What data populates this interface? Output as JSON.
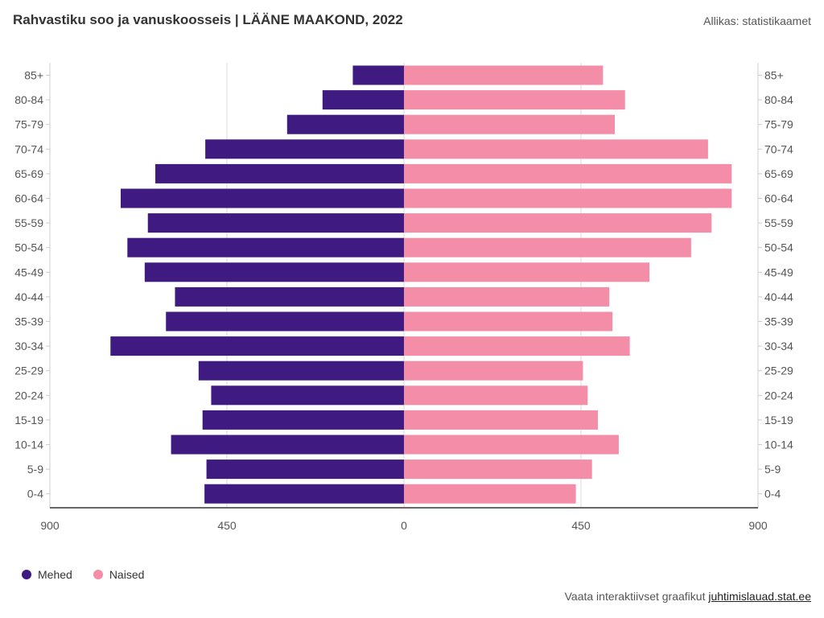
{
  "header": {
    "title": "Rahvastiku soo ja vanuskoosseis | LÄÄNE MAAKOND, 2022",
    "source": "Allikas: statistikaamet"
  },
  "footer": {
    "text": "Vaata interaktiivset graafikut",
    "link": "juhtimislauad.stat.ee"
  },
  "colors": {
    "male": "#3f1a80",
    "female": "#f48ea8",
    "grid": "#d9d9d9",
    "axis": "#666666"
  },
  "chart_data": {
    "type": "bar",
    "orientation": "horizontal",
    "title": "Rahvastiku soo ja vanuskoosseis | LÄÄNE MAAKOND, 2022",
    "categories": [
      "85+",
      "80-84",
      "75-79",
      "70-74",
      "65-69",
      "60-64",
      "55-59",
      "50-54",
      "45-49",
      "40-44",
      "35-39",
      "30-34",
      "25-29",
      "20-24",
      "15-19",
      "10-14",
      "5-9",
      "0-4"
    ],
    "x_ticks": [
      "900",
      "450",
      "0",
      "450",
      "900"
    ],
    "xlim": [
      -900,
      900
    ],
    "grid": true,
    "legend_position": "bottom-left",
    "series": [
      {
        "name": "Mehed",
        "values": [
          130,
          207,
          297,
          505,
          632,
          720,
          651,
          703,
          659,
          582,
          605,
          746,
          522,
          490,
          512,
          592,
          502,
          507
        ]
      },
      {
        "name": "Naised",
        "values": [
          506,
          562,
          536,
          773,
          833,
          833,
          782,
          730,
          624,
          522,
          530,
          574,
          455,
          467,
          493,
          546,
          478,
          437
        ]
      }
    ]
  }
}
